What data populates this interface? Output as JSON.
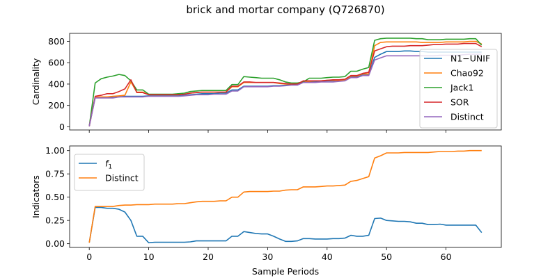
{
  "chart_data": {
    "type": "line",
    "title": "brick and mortar company (Q726870)",
    "xlabel": "Sample Periods",
    "panels": [
      {
        "ylabel": "Cardinality",
        "ylim": [
          -30,
          875
        ],
        "yticks": [
          0,
          200,
          400,
          600,
          800
        ],
        "legend_position": "right",
        "series": [
          {
            "name": "N1−UNIF",
            "color": "#1f77b4",
            "values": [
              5,
              275,
              275,
              275,
              275,
              280,
              285,
              285,
              285,
              285,
              290,
              290,
              290,
              290,
              290,
              290,
              295,
              300,
              305,
              310,
              310,
              310,
              315,
              315,
              345,
              345,
              380,
              380,
              380,
              380,
              380,
              385,
              385,
              390,
              395,
              400,
              420,
              420,
              420,
              425,
              430,
              430,
              435,
              440,
              470,
              470,
              490,
              490,
              650,
              680,
              705,
              705,
              705,
              710,
              710,
              705,
              705,
              700,
              700,
              700,
              700,
              700,
              700,
              700,
              700,
              700,
              700
            ]
          },
          {
            "name": "Chao92",
            "color": "#ff7f0e",
            "values": [
              5,
              275,
              280,
              280,
              285,
              290,
              295,
              420,
              325,
              325,
              300,
              300,
              300,
              300,
              300,
              300,
              305,
              315,
              320,
              325,
              325,
              325,
              325,
              325,
              375,
              375,
              415,
              415,
              415,
              415,
              415,
              415,
              405,
              400,
              400,
              405,
              425,
              425,
              430,
              430,
              435,
              435,
              435,
              440,
              475,
              475,
              495,
              495,
              760,
              790,
              795,
              795,
              795,
              795,
              795,
              795,
              790,
              790,
              790,
              790,
              795,
              795,
              795,
              795,
              800,
              800,
              775
            ]
          },
          {
            "name": "Jack1",
            "color": "#2ca02c",
            "values": [
              5,
              410,
              450,
              465,
              475,
              490,
              480,
              430,
              345,
              345,
              305,
              305,
              305,
              305,
              305,
              310,
              315,
              330,
              335,
              340,
              340,
              340,
              340,
              340,
              395,
              395,
              470,
              465,
              460,
              455,
              455,
              455,
              440,
              420,
              410,
              410,
              420,
              455,
              455,
              455,
              460,
              465,
              465,
              470,
              520,
              520,
              540,
              555,
              810,
              825,
              830,
              830,
              830,
              830,
              830,
              825,
              825,
              815,
              815,
              815,
              820,
              820,
              820,
              820,
              825,
              825,
              765
            ]
          },
          {
            "name": "SOR",
            "color": "#d62728",
            "values": [
              5,
              285,
              295,
              310,
              310,
              330,
              355,
              440,
              320,
              320,
              300,
              300,
              300,
              300,
              300,
              300,
              305,
              315,
              320,
              325,
              325,
              325,
              325,
              325,
              380,
              380,
              420,
              420,
              415,
              415,
              415,
              415,
              410,
              405,
              400,
              400,
              430,
              430,
              430,
              430,
              435,
              440,
              440,
              445,
              480,
              480,
              500,
              510,
              710,
              730,
              750,
              755,
              755,
              755,
              760,
              760,
              760,
              765,
              770,
              770,
              775,
              775,
              775,
              780,
              780,
              780,
              750
            ]
          },
          {
            "name": "Distinct",
            "color": "#9467bd",
            "values": [
              5,
              270,
              270,
              270,
              270,
              280,
              280,
              280,
              280,
              280,
              285,
              285,
              285,
              285,
              285,
              285,
              290,
              295,
              300,
              300,
              300,
              305,
              305,
              305,
              335,
              335,
              375,
              375,
              375,
              375,
              375,
              380,
              380,
              385,
              390,
              390,
              415,
              415,
              415,
              420,
              420,
              420,
              425,
              430,
              460,
              460,
              480,
              480,
              625,
              645,
              665,
              665,
              665,
              665,
              665,
              665,
              665,
              665,
              665,
              670,
              670,
              670,
              670,
              675,
              680,
              680,
              680
            ]
          }
        ]
      },
      {
        "ylabel": "Indicators",
        "ylim": [
          -0.04,
          1.05
        ],
        "yticks": [
          0.0,
          0.25,
          0.5,
          0.75,
          1.0
        ],
        "ytick_labels": [
          "0.00",
          "0.25",
          "0.50",
          "0.75",
          "1.00"
        ],
        "legend_position": "top-left",
        "series": [
          {
            "name": "f1",
            "color": "#1f77b4",
            "values": [
              0.01,
              0.39,
              0.39,
              0.38,
              0.38,
              0.37,
              0.34,
              0.25,
              0.08,
              0.08,
              0.01,
              0.015,
              0.015,
              0.015,
              0.015,
              0.015,
              0.015,
              0.02,
              0.03,
              0.03,
              0.03,
              0.03,
              0.03,
              0.03,
              0.08,
              0.08,
              0.13,
              0.12,
              0.11,
              0.105,
              0.105,
              0.08,
              0.05,
              0.025,
              0.025,
              0.03,
              0.055,
              0.055,
              0.05,
              0.05,
              0.05,
              0.055,
              0.055,
              0.06,
              0.09,
              0.08,
              0.08,
              0.09,
              0.27,
              0.275,
              0.25,
              0.245,
              0.24,
              0.24,
              0.235,
              0.22,
              0.22,
              0.205,
              0.205,
              0.21,
              0.2,
              0.2,
              0.2,
              0.2,
              0.2,
              0.2,
              0.12
            ]
          },
          {
            "name": "Distinct",
            "color": "#ff7f0e",
            "values": [
              0.01,
              0.4,
              0.4,
              0.4,
              0.4,
              0.41,
              0.415,
              0.415,
              0.42,
              0.42,
              0.42,
              0.425,
              0.425,
              0.425,
              0.425,
              0.43,
              0.43,
              0.44,
              0.45,
              0.455,
              0.455,
              0.455,
              0.46,
              0.46,
              0.5,
              0.5,
              0.555,
              0.56,
              0.56,
              0.56,
              0.56,
              0.565,
              0.565,
              0.575,
              0.58,
              0.58,
              0.61,
              0.61,
              0.61,
              0.615,
              0.62,
              0.62,
              0.625,
              0.63,
              0.67,
              0.68,
              0.7,
              0.72,
              0.92,
              0.945,
              0.975,
              0.975,
              0.975,
              0.98,
              0.98,
              0.98,
              0.98,
              0.98,
              0.985,
              0.99,
              0.99,
              0.99,
              0.995,
              0.995,
              1.0,
              1.0,
              1.0
            ]
          }
        ]
      }
    ],
    "xlim": [
      -3.3,
      69.3
    ],
    "xticks": [
      0,
      10,
      20,
      30,
      40,
      50,
      60
    ]
  }
}
